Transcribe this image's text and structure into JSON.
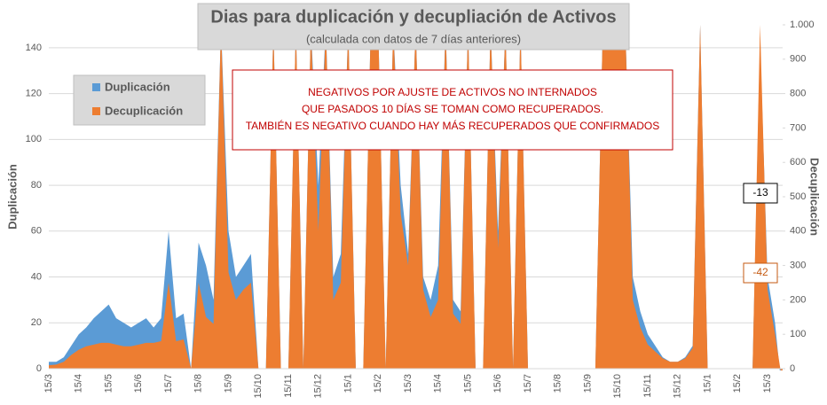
{
  "chart_data": {
    "type": "area",
    "title": "Dias para duplicación y decupliación de Activos",
    "subtitle": "(calculada con datos de 7 días anteriores)",
    "y_label": "Duplicación",
    "y2_label": "Decuplicación",
    "annotation": [
      "NEGATIVOS POR AJUSTE DE ACTIVOS NO INTERNADOS",
      "QUE PASADOS 10 DÍAS SE TOMAN COMO RECUPERADOS.",
      "TAMBIÉN ES NEGATIVO CUANDO HAY MÁS RECUPERADOS QUE CONFIRMADOS"
    ],
    "categories": [
      "15/3",
      null,
      null,
      null,
      "15/4",
      null,
      null,
      null,
      "15/5",
      null,
      null,
      null,
      "15/6",
      null,
      null,
      null,
      "15/7",
      null,
      null,
      null,
      "15/8",
      null,
      null,
      null,
      "15/9",
      null,
      null,
      null,
      "15/10",
      null,
      null,
      null,
      "15/11",
      null,
      null,
      null,
      "15/12",
      null,
      null,
      null,
      "15/1",
      null,
      null,
      null,
      "15/2",
      null,
      null,
      null,
      "15/3",
      null,
      null,
      null,
      "15/4",
      null,
      null,
      null,
      "15/5",
      null,
      null,
      null,
      "15/6",
      null,
      null,
      null,
      "15/7",
      null,
      null,
      null,
      "15/8",
      null,
      null,
      null,
      "15/9",
      null,
      null,
      null,
      "15/10",
      null,
      null,
      null,
      "15/11",
      null,
      null,
      null,
      "15/12",
      null,
      null,
      null,
      "15/1",
      null,
      null,
      null,
      "15/2",
      null,
      null,
      null,
      "15/3",
      null,
      null
    ],
    "series": [
      {
        "name": "Duplicación",
        "color": "#5b9bd5",
        "axis": "y",
        "values": [
          3,
          3,
          5,
          10,
          15,
          18,
          22,
          25,
          28,
          22,
          20,
          18,
          20,
          22,
          18,
          22,
          60,
          22,
          24,
          0,
          55,
          45,
          30,
          150,
          60,
          40,
          45,
          50,
          0,
          0,
          150,
          0,
          0,
          150,
          0,
          150,
          80,
          150,
          40,
          50,
          150,
          0,
          0,
          150,
          150,
          0,
          150,
          80,
          50,
          150,
          40,
          30,
          45,
          150,
          30,
          25,
          150,
          0,
          0,
          150,
          60,
          150,
          0,
          150,
          0,
          0,
          0,
          0,
          0,
          0,
          0,
          0,
          0,
          0,
          150,
          150,
          150,
          150,
          40,
          25,
          15,
          10,
          5,
          3,
          3,
          5,
          10,
          150,
          0,
          0,
          0,
          0,
          0,
          0,
          0,
          143,
          40,
          20,
          -13
        ]
      },
      {
        "name": "Decuplicación",
        "color": "#ed7d31",
        "axis": "y2",
        "values": [
          10,
          12,
          20,
          40,
          55,
          65,
          70,
          75,
          75,
          70,
          65,
          65,
          70,
          75,
          75,
          80,
          250,
          80,
          85,
          0,
          250,
          150,
          130,
          1000,
          280,
          200,
          230,
          250,
          0,
          0,
          1000,
          0,
          0,
          1000,
          0,
          1000,
          400,
          1000,
          200,
          250,
          1000,
          0,
          0,
          1000,
          1000,
          0,
          1000,
          450,
          300,
          1000,
          230,
          150,
          200,
          1000,
          160,
          130,
          1000,
          0,
          0,
          1000,
          350,
          1000,
          0,
          1000,
          0,
          0,
          0,
          0,
          0,
          0,
          0,
          0,
          0,
          0,
          1000,
          1000,
          1000,
          1000,
          200,
          120,
          70,
          50,
          30,
          20,
          20,
          30,
          60,
          1000,
          0,
          0,
          0,
          0,
          0,
          0,
          0,
          1000,
          230,
          100,
          -42
        ]
      }
    ],
    "ylim": [
      0,
      150
    ],
    "yticks": [
      0,
      20,
      40,
      60,
      80,
      100,
      120,
      140
    ],
    "y2lim": [
      0,
      1000
    ],
    "y2ticks": [
      0,
      100,
      200,
      300,
      400,
      500,
      600,
      700,
      800,
      900,
      {
        "value": 1000,
        "label": "1.000"
      }
    ],
    "grid": true
  }
}
